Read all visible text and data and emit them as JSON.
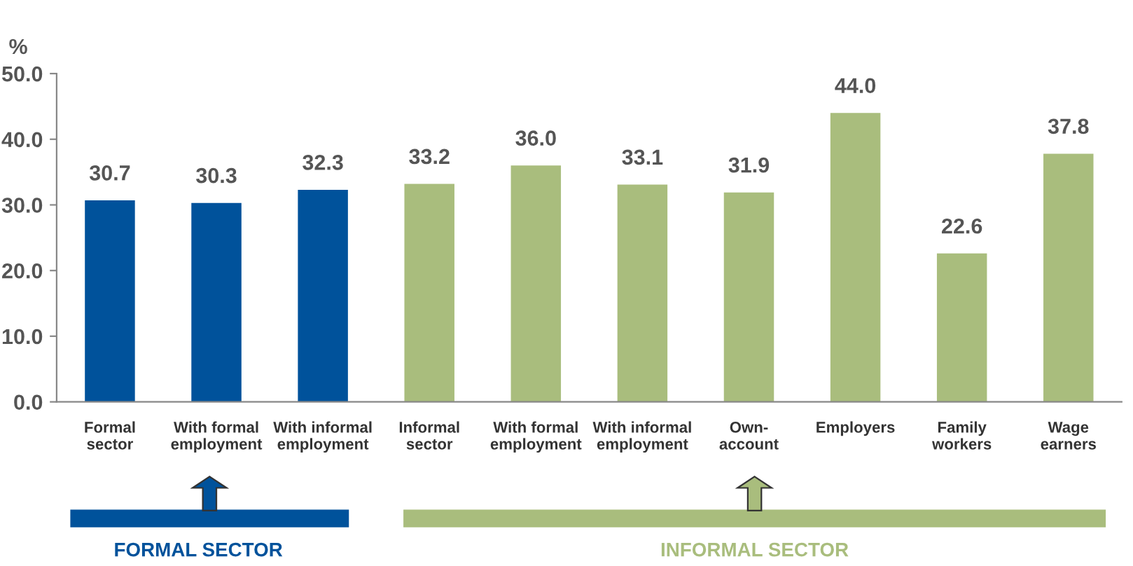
{
  "chart_data": {
    "type": "bar",
    "ylabel": "%",
    "categories": [
      "Formal\nsector",
      "With formal\nemployment",
      "With informal\nemployment",
      "Informal\nsector",
      "With formal\nemployment",
      "With informal\nemployment",
      "Own-\naccount",
      "Employers",
      "Family\nworkers",
      "Wage\nearners"
    ],
    "values": [
      30.7,
      30.3,
      32.3,
      33.2,
      36.0,
      33.1,
      31.9,
      44.0,
      22.6,
      37.8
    ],
    "colors": [
      "#00529b",
      "#00529b",
      "#00529b",
      "#a9bd7d",
      "#a9bd7d",
      "#a9bd7d",
      "#a9bd7d",
      "#a9bd7d",
      "#a9bd7d",
      "#a9bd7d"
    ],
    "ylim": [
      0,
      50
    ],
    "yticks": [
      {
        "value": 0,
        "label": "0.0"
      },
      {
        "value": 10,
        "label": "10.0"
      },
      {
        "value": 20,
        "label": "20.0"
      },
      {
        "value": 30,
        "label": "30.0"
      },
      {
        "value": 40,
        "label": "40.0"
      },
      {
        "value": 50,
        "label": "50.0"
      }
    ],
    "value_labels": [
      "30.7",
      "30.3",
      "32.3",
      "33.2",
      "36.0",
      "33.1",
      "31.9",
      "44.0",
      "22.6",
      "37.8"
    ],
    "grid": false,
    "legend": false,
    "annotations": [
      "FORMAL SECTOR",
      "INFORMAL SECTOR"
    ]
  }
}
